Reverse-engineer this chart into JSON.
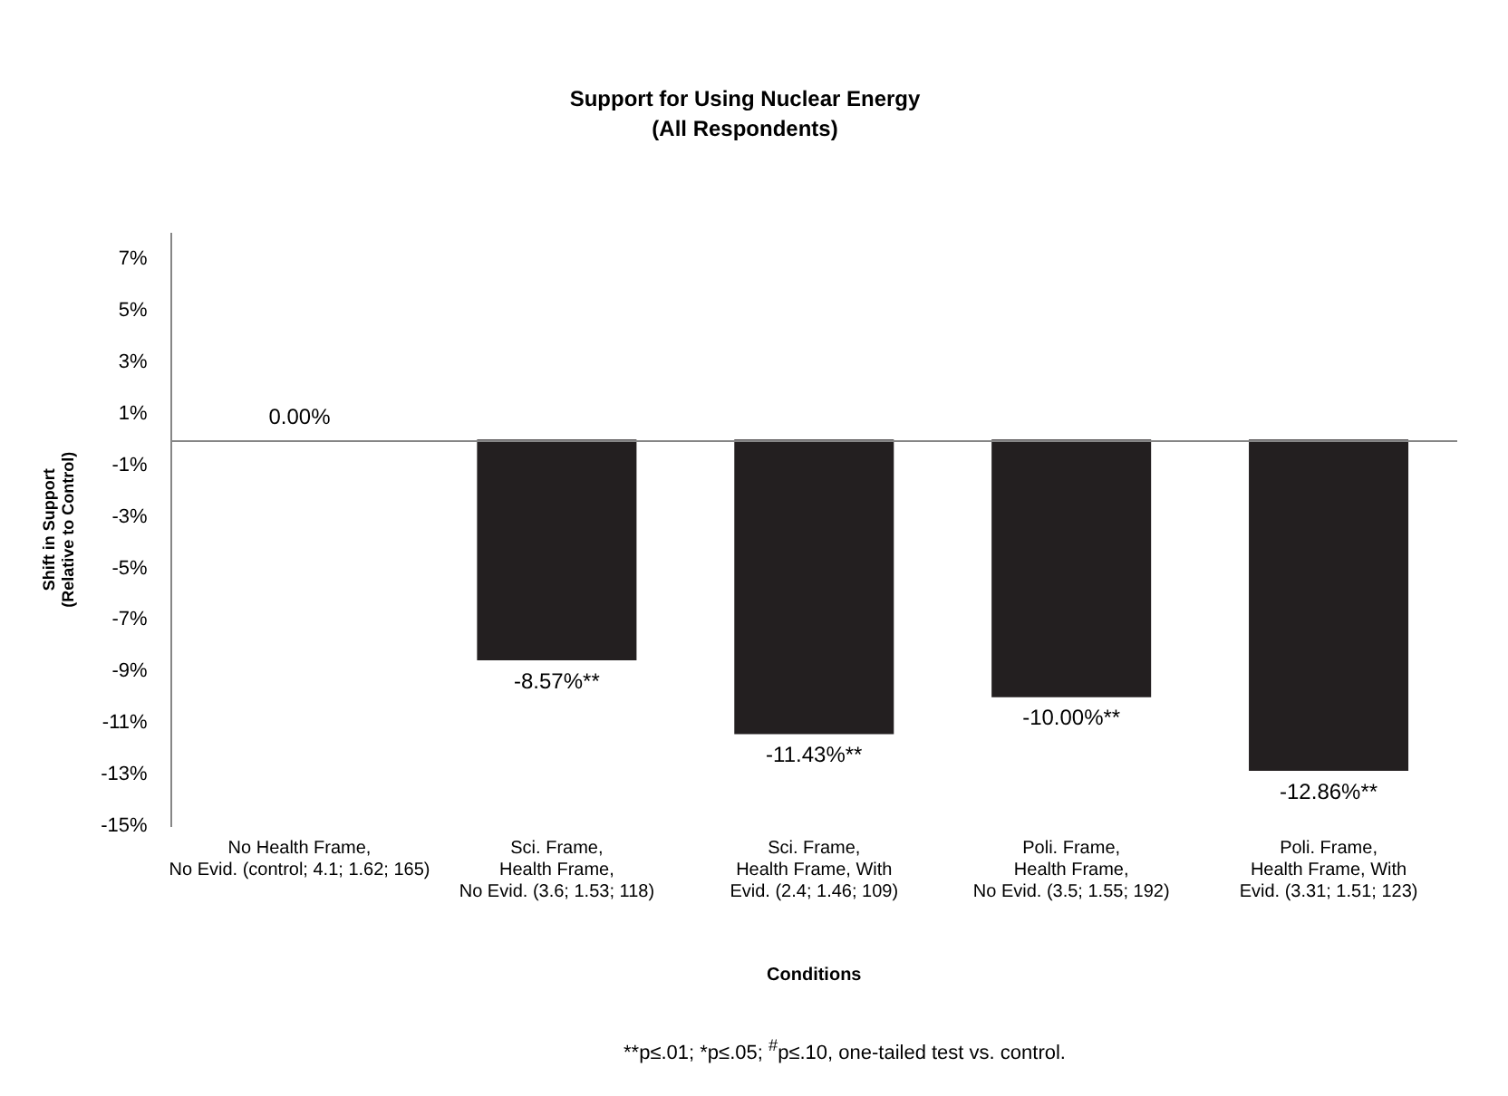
{
  "chart_data": {
    "type": "bar",
    "title": "Support for Using Nuclear Energy",
    "subtitle": "(All Respondents)",
    "xlabel": "Conditions",
    "ylabel": "Shift in Support\n(Relative to Control)",
    "categories": [
      "No Health Frame,\nNo Evid. (control; 4.1; 1.62; 165)",
      "Sci. Frame,\nHealth Frame,\nNo Evid. (3.6; 1.53; 118)",
      "Sci. Frame,\nHealth Frame, With\nEvid. (2.4; 1.46; 109)",
      "Poli. Frame,\nHealth Frame,\nNo Evid. (3.5; 1.55; 192)",
      "Poli. Frame,\nHealth Frame, With\nEvid. (3.31; 1.51; 123)"
    ],
    "values": [
      0,
      -8.57,
      -11.43,
      -10,
      -12.86
    ],
    "value_labels": [
      "0.00%",
      "-8.57%**",
      "-11.43%**",
      "-10.00%**",
      "-12.86%**"
    ],
    "color": "#231f20",
    "ylim": [
      -15,
      8
    ],
    "yticks": [
      {
        "value": -15,
        "label": "-15%"
      },
      {
        "value": -13,
        "label": "-13%"
      },
      {
        "value": -11,
        "label": "-11%"
      },
      {
        "value": -9,
        "label": "-9%"
      },
      {
        "value": -7,
        "label": "-7%"
      },
      {
        "value": -5,
        "label": "-5%"
      },
      {
        "value": -3,
        "label": "-3%"
      },
      {
        "value": -1,
        "label": "-1%"
      },
      {
        "value": 1,
        "label": "1%"
      },
      {
        "value": 3,
        "label": "3%"
      },
      {
        "value": 5,
        "label": "5%"
      },
      {
        "value": 7,
        "label": "7%"
      }
    ],
    "annotations": [
      "**p≤.01; *p≤.05; $^{#}$p≤.10, one-tailed test vs. control."
    ]
  }
}
